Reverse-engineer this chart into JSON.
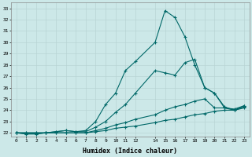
{
  "xlabel": "Humidex (Indice chaleur)",
  "background_color": "#cce8e8",
  "grid_color": "#aaaaaa",
  "line_color": "#006868",
  "xlim": [
    -0.5,
    23.5
  ],
  "ylim": [
    21.7,
    33.5
  ],
  "xticks": [
    0,
    1,
    2,
    3,
    4,
    5,
    6,
    7,
    8,
    9,
    10,
    11,
    12,
    14,
    15,
    16,
    17,
    18,
    19,
    20,
    21,
    22,
    23
  ],
  "yticks": [
    22,
    23,
    24,
    25,
    26,
    27,
    28,
    29,
    30,
    31,
    32,
    33
  ],
  "lines": [
    {
      "x": [
        0,
        1,
        2,
        3,
        4,
        5,
        6,
        7,
        8,
        9,
        10,
        11,
        12,
        14,
        15,
        16,
        17,
        18,
        19,
        20,
        21,
        22,
        23
      ],
      "y": [
        22.0,
        22.0,
        22.0,
        22.0,
        22.0,
        22.0,
        22.0,
        22.0,
        22.1,
        22.2,
        22.4,
        22.5,
        22.6,
        22.9,
        23.1,
        23.2,
        23.4,
        23.6,
        23.7,
        23.9,
        24.0,
        24.0,
        24.2
      ]
    },
    {
      "x": [
        0,
        1,
        2,
        3,
        4,
        5,
        6,
        7,
        8,
        9,
        10,
        11,
        12,
        14,
        15,
        16,
        17,
        18,
        19,
        20,
        21,
        22,
        23
      ],
      "y": [
        22.0,
        22.0,
        22.0,
        22.0,
        22.0,
        22.0,
        22.0,
        22.0,
        22.2,
        22.4,
        22.7,
        22.9,
        23.2,
        23.6,
        24.0,
        24.3,
        24.5,
        24.8,
        25.0,
        24.2,
        24.2,
        24.1,
        24.4
      ]
    },
    {
      "x": [
        0,
        1,
        2,
        3,
        4,
        5,
        6,
        7,
        8,
        9,
        10,
        11,
        12,
        14,
        15,
        16,
        17,
        18,
        19,
        20,
        21,
        22,
        23
      ],
      "y": [
        22.0,
        21.9,
        21.9,
        22.0,
        22.1,
        22.2,
        22.1,
        22.1,
        22.5,
        23.0,
        23.8,
        24.5,
        25.5,
        27.5,
        27.3,
        27.1,
        28.2,
        28.5,
        26.0,
        25.5,
        24.2,
        24.0,
        24.3
      ]
    },
    {
      "x": [
        0,
        1,
        2,
        3,
        4,
        5,
        6,
        7,
        8,
        9,
        10,
        11,
        12,
        14,
        15,
        16,
        17,
        18,
        19,
        20,
        21,
        22,
        23
      ],
      "y": [
        22.0,
        21.9,
        21.9,
        22.0,
        22.1,
        22.2,
        22.1,
        22.2,
        23.0,
        24.5,
        25.5,
        27.5,
        28.3,
        30.0,
        32.8,
        32.2,
        30.5,
        28.0,
        26.0,
        25.5,
        24.3,
        24.0,
        24.4
      ]
    }
  ]
}
